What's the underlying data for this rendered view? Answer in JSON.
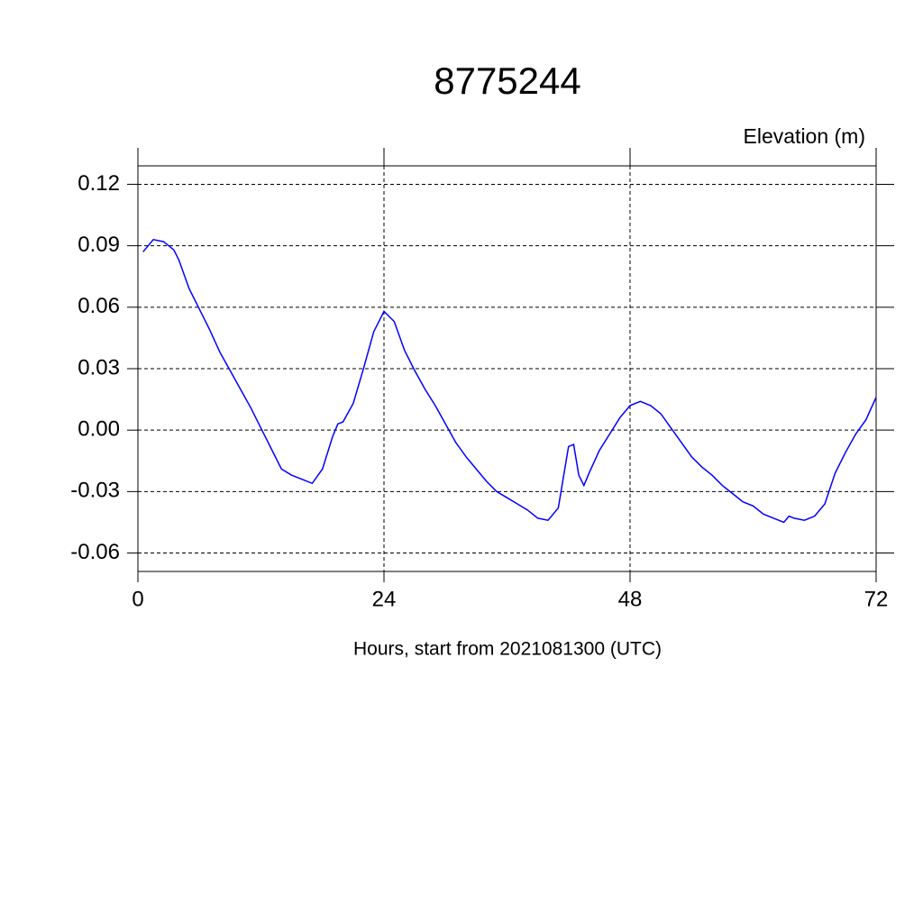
{
  "chart_data": {
    "type": "line",
    "title": "8775244",
    "subtitle": "Elevation (m)",
    "xlabel": "Hours, start from 2021081300 (UTC)",
    "x": [
      0.5,
      1.5,
      2.5,
      3.5,
      4,
      5,
      6,
      7,
      8,
      9,
      10,
      11,
      12,
      13,
      14,
      15,
      16,
      17,
      18,
      19,
      19.5,
      20,
      21,
      22,
      23,
      24,
      25,
      26,
      27,
      28,
      29,
      30,
      31,
      32,
      33,
      34,
      35,
      36,
      37,
      38,
      39,
      40,
      41,
      42,
      42.5,
      43,
      43.5,
      44,
      45,
      46,
      47,
      48,
      49,
      50,
      51,
      52,
      53,
      54,
      55,
      56,
      57,
      58,
      59,
      60,
      61,
      62,
      63,
      63.5,
      64,
      65,
      66,
      67,
      68,
      69,
      70,
      71,
      72
    ],
    "series": [
      {
        "name": "Elevation",
        "color": "#0000ff",
        "values": [
          0.087,
          0.093,
          0.092,
          0.088,
          0.083,
          0.069,
          0.059,
          0.049,
          0.038,
          0.029,
          0.02,
          0.011,
          0.001,
          -0.009,
          -0.019,
          -0.022,
          -0.024,
          -0.026,
          -0.019,
          -0.003,
          0.003,
          0.004,
          0.013,
          0.03,
          0.048,
          0.058,
          0.053,
          0.039,
          0.029,
          0.02,
          0.012,
          0.003,
          -0.006,
          -0.013,
          -0.019,
          -0.025,
          -0.03,
          -0.033,
          -0.036,
          -0.039,
          -0.043,
          -0.044,
          -0.038,
          -0.008,
          -0.007,
          -0.022,
          -0.027,
          -0.021,
          -0.01,
          -0.002,
          0.006,
          0.012,
          0.014,
          0.012,
          0.008,
          0.001,
          -0.006,
          -0.013,
          -0.018,
          -0.022,
          -0.027,
          -0.031,
          -0.035,
          -0.037,
          -0.041,
          -0.043,
          -0.045,
          -0.042,
          -0.043,
          -0.044,
          -0.042,
          -0.036,
          -0.021,
          -0.011,
          -0.002,
          0.005,
          0.016
        ]
      }
    ],
    "xlim": [
      0,
      72
    ],
    "xticks": [
      0,
      24,
      48,
      72
    ],
    "ylim": [
      -0.069,
      0.129
    ],
    "yticks": [
      {
        "value": 0.12,
        "label": "0.12"
      },
      {
        "value": 0.09,
        "label": "0.09"
      },
      {
        "value": 0.06,
        "label": "0.06"
      },
      {
        "value": 0.03,
        "label": "0.03"
      },
      {
        "value": 0,
        "label": "0.00"
      },
      {
        "value": -0.03,
        "label": "-0.03"
      },
      {
        "value": -0.06,
        "label": "-0.06"
      }
    ],
    "grid": true
  }
}
